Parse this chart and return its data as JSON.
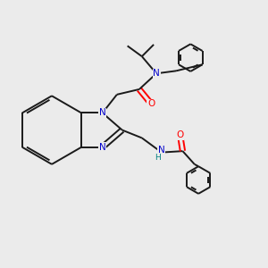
{
  "background_color": "#ebebeb",
  "atom_colors": {
    "N": "#0000cc",
    "O": "#ff0000",
    "H": "#008080",
    "C": "#000000"
  },
  "bond_color": "#1a1a1a",
  "bond_width": 1.4,
  "figsize": [
    3.0,
    3.0
  ],
  "dpi": 100
}
